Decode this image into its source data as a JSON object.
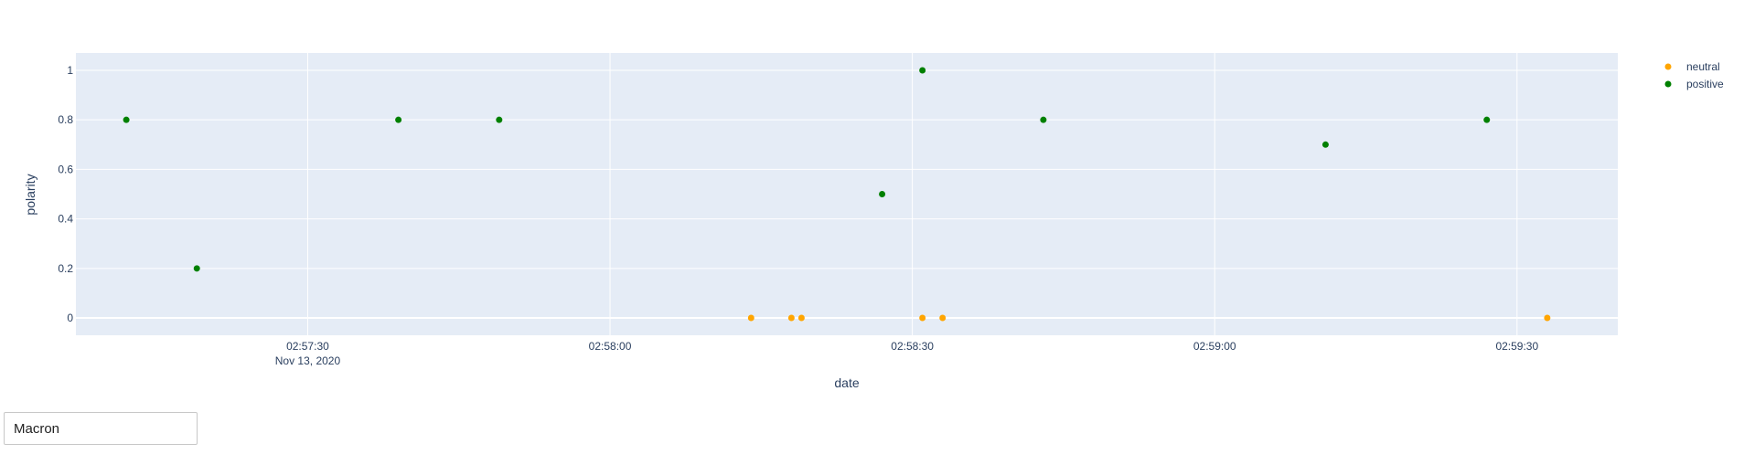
{
  "input": {
    "value": "Macron"
  },
  "chart_data": {
    "type": "scatter",
    "title": "",
    "xlabel": "date",
    "ylabel": "polarity",
    "xlim": [
      "2020-11-13 02:57:07",
      "2020-11-13 02:59:40"
    ],
    "ylim": [
      -0.07,
      1.07
    ],
    "grid": true,
    "legend_placement": "top-right",
    "plot_bg": "#e5ecf6",
    "x_ticks": [
      {
        "t": "2020-11-13 02:57:30",
        "label": "02:57:30",
        "sub": "Nov 13, 2020"
      },
      {
        "t": "2020-11-13 02:58:00",
        "label": "02:58:00",
        "sub": ""
      },
      {
        "t": "2020-11-13 02:58:30",
        "label": "02:58:30",
        "sub": ""
      },
      {
        "t": "2020-11-13 02:59:00",
        "label": "02:59:00",
        "sub": ""
      },
      {
        "t": "2020-11-13 02:59:30",
        "label": "02:59:30",
        "sub": ""
      }
    ],
    "y_ticks": [
      {
        "v": 0,
        "label": "0"
      },
      {
        "v": 0.2,
        "label": "0.2"
      },
      {
        "v": 0.4,
        "label": "0.4"
      },
      {
        "v": 0.6,
        "label": "0.6"
      },
      {
        "v": 0.8,
        "label": "0.8"
      },
      {
        "v": 1,
        "label": "1"
      }
    ],
    "series": [
      {
        "name": "neutral",
        "color": "#ffa500",
        "points": [
          {
            "x": "2020-11-13 02:58:14",
            "y": 0
          },
          {
            "x": "2020-11-13 02:58:18",
            "y": 0
          },
          {
            "x": "2020-11-13 02:58:19",
            "y": 0
          },
          {
            "x": "2020-11-13 02:58:31",
            "y": 0
          },
          {
            "x": "2020-11-13 02:58:33",
            "y": 0
          },
          {
            "x": "2020-11-13 02:59:33",
            "y": 0
          }
        ]
      },
      {
        "name": "positive",
        "color": "#008000",
        "points": [
          {
            "x": "2020-11-13 02:57:12",
            "y": 0.8
          },
          {
            "x": "2020-11-13 02:57:19",
            "y": 0.2
          },
          {
            "x": "2020-11-13 02:57:39",
            "y": 0.8
          },
          {
            "x": "2020-11-13 02:57:49",
            "y": 0.8
          },
          {
            "x": "2020-11-13 02:58:27",
            "y": 0.5
          },
          {
            "x": "2020-11-13 02:58:31",
            "y": 1
          },
          {
            "x": "2020-11-13 02:58:43",
            "y": 0.8
          },
          {
            "x": "2020-11-13 02:59:11",
            "y": 0.7
          },
          {
            "x": "2020-11-13 02:59:27",
            "y": 0.8
          }
        ]
      }
    ]
  }
}
